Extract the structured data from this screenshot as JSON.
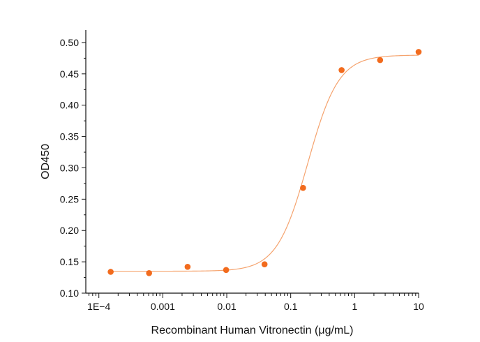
{
  "chart_data": {
    "type": "scatter",
    "title": "",
    "xlabel": "Recombinant Human Vitronectin (μg/mL)",
    "ylabel": "OD450",
    "xscale": "log",
    "xlim": [
      6.25e-05,
      10
    ],
    "ylim": [
      0.1,
      0.52
    ],
    "x_ticks": [
      0.0001,
      0.001,
      0.01,
      0.1,
      1,
      10
    ],
    "x_tick_labels": [
      "1E−4",
      "0.001",
      "0.01",
      "0.1",
      "1",
      "10"
    ],
    "y_ticks": [
      0.1,
      0.15,
      0.2,
      0.25,
      0.3,
      0.35,
      0.4,
      0.45,
      0.5
    ],
    "y_tick_labels": [
      "0.10",
      "0.15",
      "0.20",
      "0.25",
      "0.30",
      "0.35",
      "0.40",
      "0.45",
      "0.50"
    ],
    "grid": false,
    "legend": "none",
    "series": [
      {
        "x": [
          0.000153,
          0.00061,
          0.00244,
          0.00977,
          0.039,
          0.156,
          0.625,
          2.5,
          10
        ],
        "y": [
          0.134,
          0.132,
          0.142,
          0.137,
          0.146,
          0.268,
          0.456,
          0.472,
          0.485
        ],
        "marker_color": "#F26B1D",
        "fit_color": "#F5A36E"
      }
    ],
    "fit": {
      "model": "4PL",
      "bottom": 0.135,
      "top": 0.48,
      "ec50": 0.185,
      "hill": 1.8
    }
  }
}
